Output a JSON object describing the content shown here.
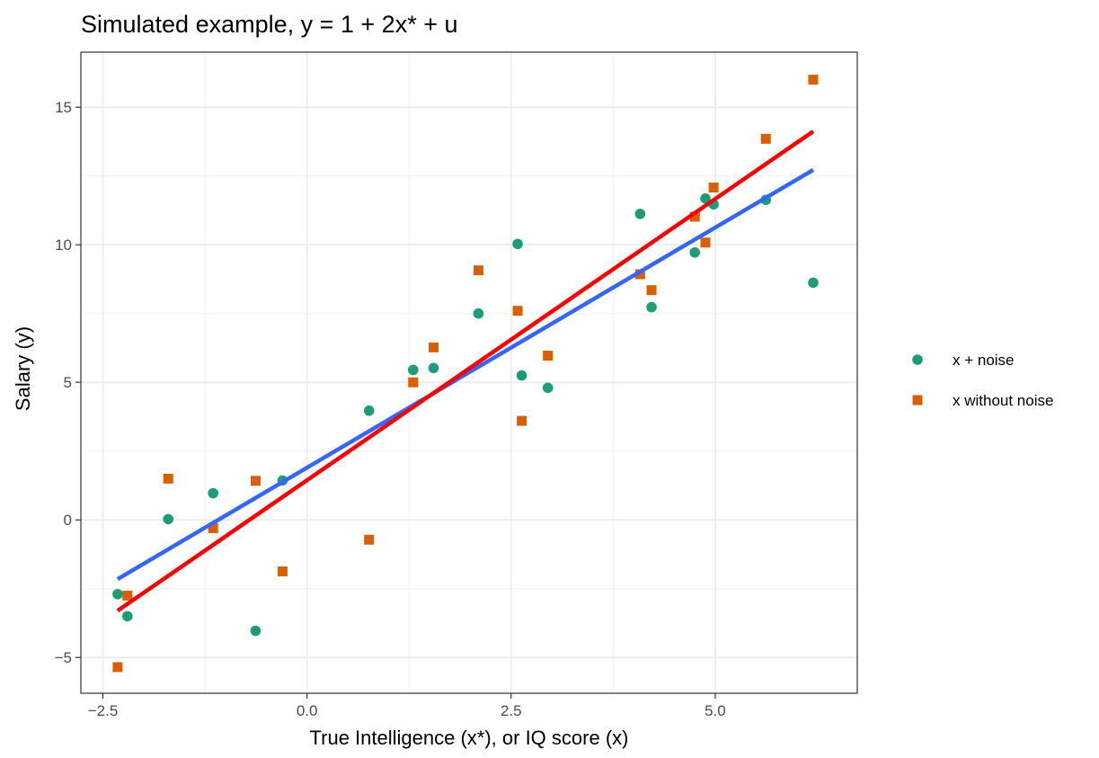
{
  "chart_data": {
    "type": "scatter",
    "title": "Simulated example, y = 1 + 2x* + u",
    "xlabel": "True Intelligence (x*), or IQ score (x)",
    "ylabel": "Salary (y)",
    "xlim": [
      -2.77,
      6.74
    ],
    "ylim": [
      -6.3,
      17.0
    ],
    "x_ticks": [
      -2.5,
      0.0,
      2.5,
      5.0
    ],
    "x_tick_labels": [
      "-2.5",
      "0.0",
      "2.5",
      "5.0"
    ],
    "y_ticks": [
      -5,
      0,
      5,
      10,
      15
    ],
    "y_tick_labels": [
      "-5",
      "0",
      "5",
      "10",
      "15"
    ],
    "grid": true,
    "legend_position": "right",
    "series": [
      {
        "name": "x + noise",
        "color": "#1b9e77",
        "marker": "circle",
        "points": [
          [
            -2.32,
            -2.7
          ],
          [
            -2.2,
            -3.5
          ],
          [
            -1.7,
            0.03
          ],
          [
            -1.15,
            0.97
          ],
          [
            -0.63,
            -4.03
          ],
          [
            -0.3,
            1.43
          ],
          [
            0.76,
            3.97
          ],
          [
            1.3,
            5.45
          ],
          [
            1.55,
            5.52
          ],
          [
            2.1,
            7.5
          ],
          [
            2.58,
            10.03
          ],
          [
            2.63,
            5.25
          ],
          [
            2.95,
            4.8
          ],
          [
            4.08,
            11.12
          ],
          [
            4.22,
            7.73
          ],
          [
            4.75,
            9.72
          ],
          [
            4.88,
            11.68
          ],
          [
            4.98,
            11.47
          ],
          [
            5.62,
            11.63
          ],
          [
            6.2,
            8.62
          ]
        ]
      },
      {
        "name": "x without noise",
        "color": "#d95f02",
        "marker": "square",
        "points": [
          [
            -2.32,
            -5.35
          ],
          [
            -2.2,
            -2.75
          ],
          [
            -1.7,
            1.5
          ],
          [
            -1.15,
            -0.3
          ],
          [
            -0.63,
            1.42
          ],
          [
            -0.3,
            -1.87
          ],
          [
            0.76,
            -0.72
          ],
          [
            1.3,
            5.0
          ],
          [
            1.55,
            6.27
          ],
          [
            2.1,
            9.07
          ],
          [
            2.58,
            7.6
          ],
          [
            2.63,
            3.6
          ],
          [
            2.95,
            5.97
          ],
          [
            4.08,
            8.93
          ],
          [
            4.22,
            8.35
          ],
          [
            4.75,
            11.02
          ],
          [
            4.88,
            10.08
          ],
          [
            4.98,
            12.08
          ],
          [
            5.62,
            13.85
          ],
          [
            6.2,
            16.0
          ]
        ]
      }
    ],
    "fit_lines": [
      {
        "series": "x + noise",
        "color": "#3366ff",
        "x": [
          -2.32,
          6.2
        ],
        "y": [
          -2.15,
          12.72
        ]
      },
      {
        "series": "x without noise",
        "color": "#ff0000",
        "x": [
          -2.32,
          6.2
        ],
        "y": [
          -3.3,
          14.12
        ]
      }
    ]
  }
}
